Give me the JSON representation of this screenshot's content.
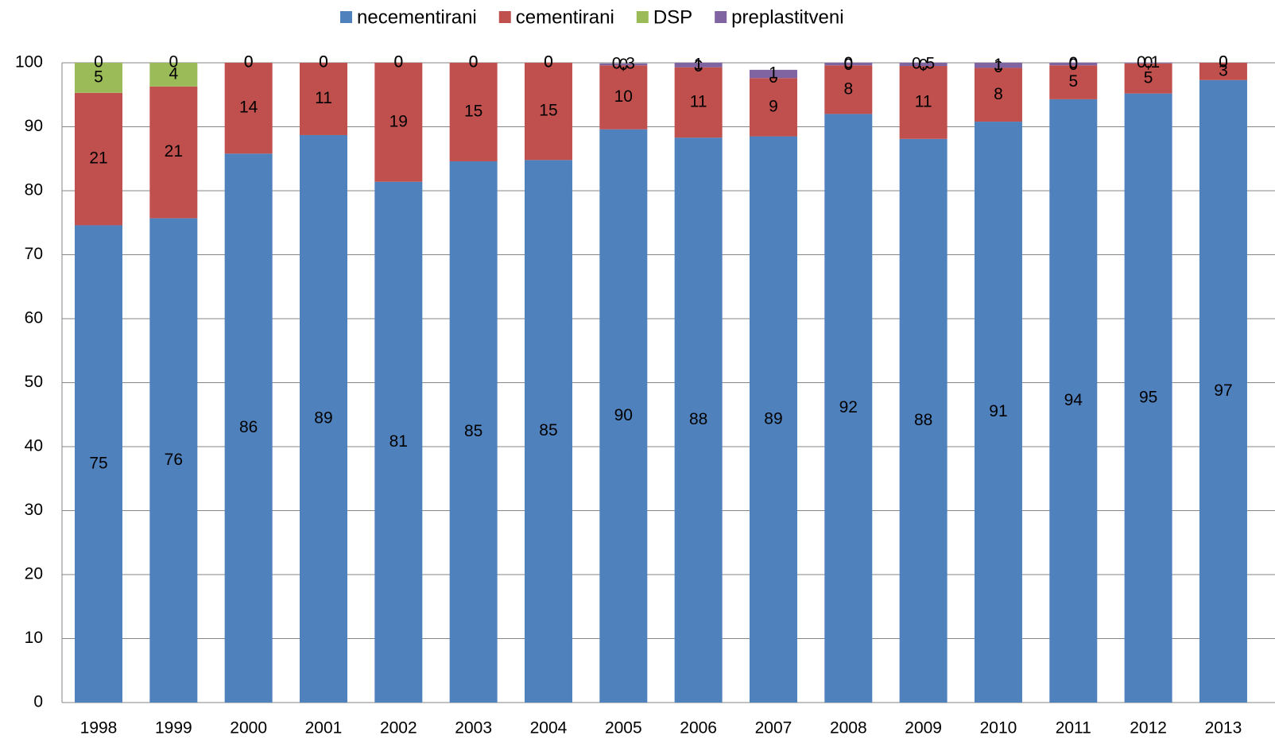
{
  "chart_data": {
    "type": "stacked-bar",
    "categories": [
      "1998",
      "1999",
      "2000",
      "2001",
      "2002",
      "2003",
      "2004",
      "2005",
      "2006",
      "2007",
      "2008",
      "2009",
      "2010",
      "2011",
      "2012",
      "2013"
    ],
    "series": [
      {
        "name": "necementirani",
        "color": "#4f81bd",
        "values": [
          74.6,
          75.7,
          85.8,
          88.7,
          81.4,
          84.6,
          84.8,
          89.6,
          88.3,
          88.5,
          92.0,
          88.1,
          90.8,
          94.3,
          95.2,
          97.3
        ],
        "value_labels": [
          "75",
          "76",
          "86",
          "89",
          "81",
          "85",
          "85",
          "90",
          "88",
          "89",
          "92",
          "88",
          "91",
          "94",
          "95",
          "97"
        ]
      },
      {
        "name": "cementirani",
        "color": "#c0504d",
        "values": [
          20.7,
          20.6,
          14.2,
          11.3,
          18.6,
          15.4,
          15.2,
          10.0,
          11.0,
          9.1,
          7.6,
          11.4,
          8.4,
          5.3,
          4.7,
          2.7
        ],
        "value_labels": [
          "21",
          "21",
          "14",
          "11",
          "19",
          "15",
          "15",
          "10",
          "11",
          "9",
          "8",
          "11",
          "8",
          "5",
          "5",
          "3"
        ]
      },
      {
        "name": "DSP",
        "color": "#9bbb59",
        "values": [
          4.7,
          3.7,
          0,
          0,
          0,
          0,
          0,
          0,
          0,
          0,
          0,
          0,
          0,
          0,
          0,
          0
        ],
        "value_labels": [
          "5",
          "4",
          "0",
          "0",
          "0",
          "0",
          "0",
          "0",
          "0",
          "0",
          "0",
          "0",
          "0",
          "0",
          "0",
          "0"
        ]
      },
      {
        "name": "preplastitveni",
        "color": "#8064a2",
        "values": [
          0,
          0,
          0,
          0,
          0,
          0,
          0,
          0.3,
          0.7,
          1.3,
          0.4,
          0.5,
          0.8,
          0.4,
          0.1,
          0
        ],
        "value_labels": [
          "0",
          "0",
          "0",
          "0",
          "0",
          "0",
          "0",
          "0,3",
          "1",
          "1",
          "0",
          "0,5",
          "1",
          "0",
          "0,1",
          "0"
        ]
      }
    ],
    "ylim": [
      0,
      100
    ],
    "yticks": [
      0,
      10,
      20,
      30,
      40,
      50,
      60,
      70,
      80,
      90,
      100
    ],
    "grid": true,
    "legend": "top"
  }
}
